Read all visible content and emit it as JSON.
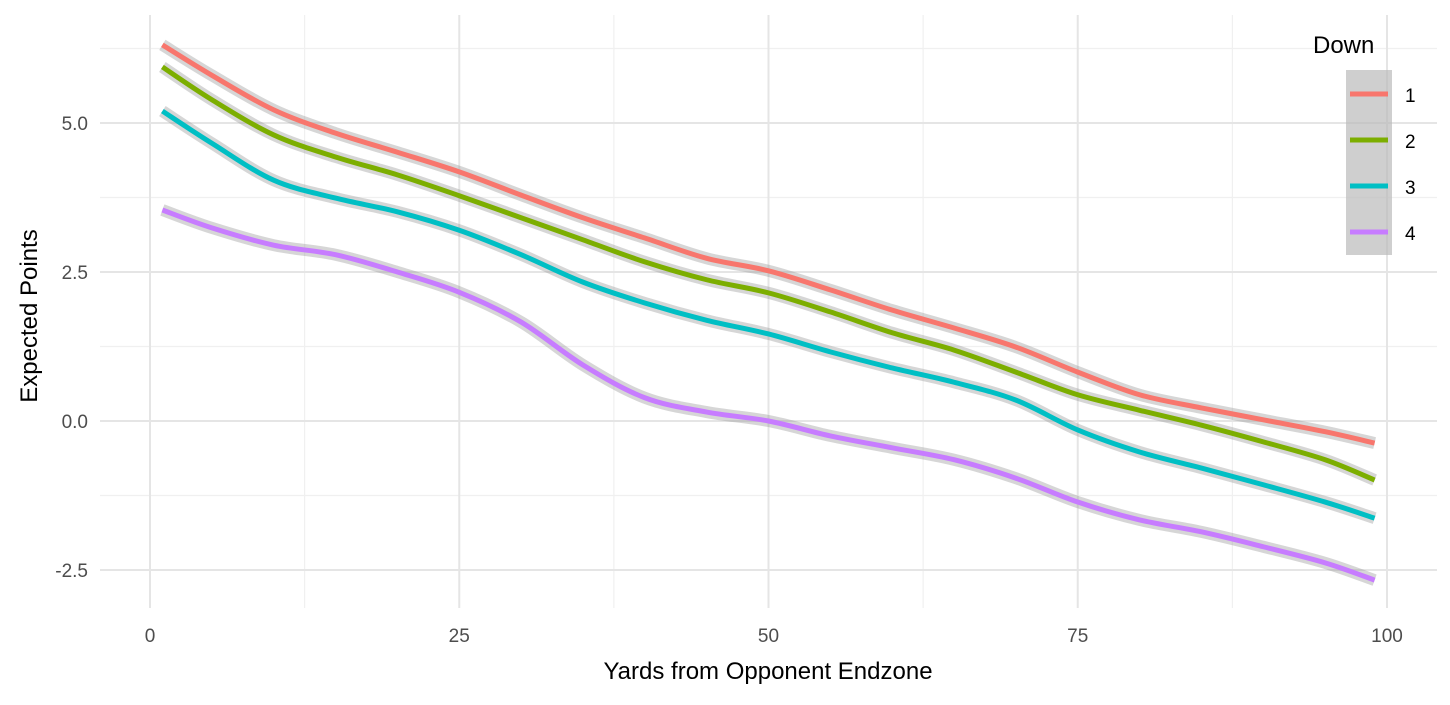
{
  "chart_data": {
    "type": "line",
    "title": "",
    "xlabel": "Yards from Opponent Endzone",
    "ylabel": "Expected Points",
    "xlim": [
      -4,
      104
    ],
    "ylim": [
      -3.15,
      6.7
    ],
    "xticks": [
      0,
      25,
      50,
      75,
      100
    ],
    "xtick_labels": [
      "0",
      "25",
      "50",
      "75",
      "100"
    ],
    "yticks": [
      -2.5,
      0,
      2.5,
      5
    ],
    "ytick_labels": [
      "-2.5",
      "0.0",
      "2.5",
      "5.0"
    ],
    "grid": true,
    "legend": {
      "title": "Down",
      "position": "top-right"
    },
    "x": [
      1,
      5,
      10,
      15,
      20,
      25,
      30,
      35,
      40,
      45,
      50,
      55,
      60,
      65,
      70,
      75,
      80,
      85,
      90,
      95,
      99
    ],
    "series": [
      {
        "name": "1",
        "color": "#F8766D",
        "values": [
          6.31,
          5.8,
          5.22,
          4.83,
          4.51,
          4.18,
          3.79,
          3.41,
          3.07,
          2.73,
          2.52,
          2.2,
          1.86,
          1.56,
          1.24,
          0.82,
          0.44,
          0.22,
          0.02,
          -0.18,
          -0.37
        ]
      },
      {
        "name": "2",
        "color": "#7CAE00",
        "values": [
          5.94,
          5.39,
          4.8,
          4.43,
          4.13,
          3.78,
          3.41,
          3.04,
          2.67,
          2.37,
          2.15,
          1.83,
          1.48,
          1.19,
          0.82,
          0.44,
          0.18,
          -0.07,
          -0.35,
          -0.65,
          -0.99
        ]
      },
      {
        "name": "3",
        "color": "#00BFC4",
        "values": [
          5.2,
          4.66,
          4.04,
          3.74,
          3.51,
          3.2,
          2.79,
          2.33,
          1.98,
          1.69,
          1.46,
          1.16,
          0.89,
          0.65,
          0.35,
          -0.15,
          -0.52,
          -0.79,
          -1.07,
          -1.36,
          -1.63
        ]
      },
      {
        "name": "4",
        "color": "#C77CFF",
        "values": [
          3.54,
          3.24,
          2.95,
          2.79,
          2.5,
          2.16,
          1.66,
          0.94,
          0.39,
          0.15,
          0.0,
          -0.25,
          -0.45,
          -0.65,
          -0.96,
          -1.36,
          -1.66,
          -1.86,
          -2.11,
          -2.38,
          -2.67
        ]
      }
    ]
  }
}
